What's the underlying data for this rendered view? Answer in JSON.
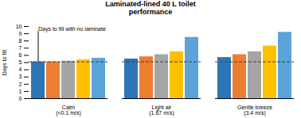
{
  "chart_data": {
    "type": "bar",
    "title": "Laminated-lined 40 L toilet\nperformance",
    "categories": [
      "Calm\n(<0.1 m/s)",
      "Light air\n(1.67 m/s)",
      "Gentle breeze\n(3.4 m/s)"
    ],
    "series": [
      {
        "color": "#2e75b6",
        "values": [
          5.1,
          5.5,
          5.7
        ]
      },
      {
        "color": "#ed7d31",
        "values": [
          5.1,
          5.8,
          6.1
        ]
      },
      {
        "color": "#a5a5a5",
        "values": [
          5.2,
          6.1,
          6.5
        ]
      },
      {
        "color": "#ffc000",
        "values": [
          5.4,
          6.5,
          7.3
        ]
      },
      {
        "color": "#5ba3d9",
        "values": [
          5.6,
          8.5,
          9.2
        ]
      }
    ],
    "ylabel": "Days to fill",
    "ylim": [
      0,
      10
    ],
    "yticks": [
      0,
      1,
      2,
      3,
      4,
      5,
      6,
      7,
      8,
      9,
      10
    ],
    "reference_lines": [
      {
        "y": 5.1,
        "line_style": "dashed"
      }
    ],
    "annotations": [
      {
        "text": "Days to fill with no laminate",
        "y": 9.3
      }
    ]
  }
}
